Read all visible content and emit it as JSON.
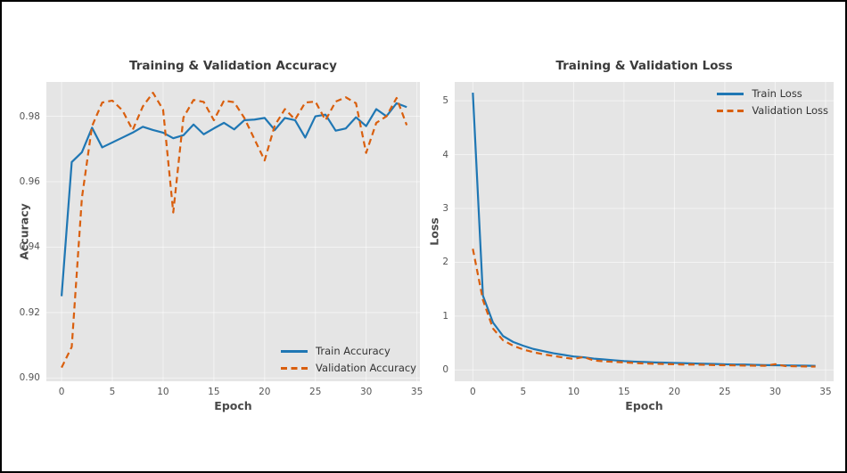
{
  "figure": {
    "background": "#ffffff",
    "frame_color": "#000000",
    "plot_background": "#e5e5e5",
    "grid_color": "#ffffff",
    "tick_color": "#555555",
    "title_color": "#3b3b3b",
    "train_color": "#1f77b4",
    "validation_color": "#d95f0e"
  },
  "chart_data": [
    {
      "type": "line",
      "title": "Training & Validation Accuracy",
      "xlabel": "Epoch",
      "ylabel": "Accuracy",
      "x": [
        0,
        1,
        2,
        3,
        4,
        5,
        6,
        7,
        8,
        9,
        10,
        11,
        12,
        13,
        14,
        15,
        16,
        17,
        18,
        19,
        20,
        21,
        22,
        23,
        24,
        25,
        26,
        27,
        28,
        29,
        30,
        31,
        32,
        33,
        34
      ],
      "series": [
        {
          "name": "Train Accuracy",
          "color": "#1f77b4",
          "line_style": "solid",
          "values": [
            0.925,
            0.966,
            0.969,
            0.9765,
            0.9705,
            0.972,
            0.9735,
            0.975,
            0.9768,
            0.9758,
            0.975,
            0.9733,
            0.9742,
            0.9775,
            0.9745,
            0.9763,
            0.978,
            0.976,
            0.9788,
            0.979,
            0.9795,
            0.9758,
            0.9795,
            0.9788,
            0.9735,
            0.98,
            0.9805,
            0.9756,
            0.9763,
            0.9797,
            0.977,
            0.9822,
            0.98,
            0.984,
            0.9828
          ]
        },
        {
          "name": "Validation Accuracy",
          "color": "#d95f0e",
          "line_style": "dashed",
          "values": [
            0.9032,
            0.9095,
            0.955,
            0.977,
            0.9842,
            0.9848,
            0.9818,
            0.9758,
            0.983,
            0.9872,
            0.982,
            0.9506,
            0.9796,
            0.985,
            0.9844,
            0.9788,
            0.9848,
            0.9843,
            0.9795,
            0.973,
            0.9665,
            0.9772,
            0.9822,
            0.979,
            0.9842,
            0.9845,
            0.9788,
            0.9845,
            0.9858,
            0.984,
            0.9688,
            0.978,
            0.98,
            0.9856,
            0.9773
          ]
        }
      ],
      "xlim": [
        -1.5,
        35.3
      ],
      "ylim": [
        0.899,
        0.9905
      ],
      "xticks": [
        0,
        5,
        10,
        15,
        20,
        25,
        30,
        35
      ],
      "xtick_labels": [
        "0",
        "5",
        "10",
        "15",
        "20",
        "25",
        "30",
        "35"
      ],
      "yticks": [
        0.9,
        0.92,
        0.94,
        0.96,
        0.98
      ],
      "ytick_labels": [
        "0.90",
        "0.92",
        "0.94",
        "0.96",
        "0.98"
      ],
      "grid": true,
      "legend_position": "lower-right"
    },
    {
      "type": "line",
      "title": "Training & Validation Loss",
      "xlabel": "Epoch",
      "ylabel": "Loss",
      "x": [
        0,
        1,
        2,
        3,
        4,
        5,
        6,
        7,
        8,
        9,
        10,
        11,
        12,
        13,
        14,
        15,
        16,
        17,
        18,
        19,
        20,
        21,
        22,
        23,
        24,
        25,
        26,
        27,
        28,
        29,
        30,
        31,
        32,
        33,
        34
      ],
      "series": [
        {
          "name": "Train Loss",
          "color": "#1f77b4",
          "line_style": "solid",
          "values": [
            5.15,
            1.38,
            0.88,
            0.63,
            0.52,
            0.45,
            0.39,
            0.35,
            0.31,
            0.28,
            0.25,
            0.235,
            0.21,
            0.195,
            0.18,
            0.165,
            0.155,
            0.148,
            0.14,
            0.135,
            0.13,
            0.125,
            0.12,
            0.115,
            0.11,
            0.105,
            0.1,
            0.1,
            0.095,
            0.09,
            0.088,
            0.085,
            0.082,
            0.08,
            0.075
          ]
        },
        {
          "name": "Validation Loss",
          "color": "#d95f0e",
          "line_style": "dashed",
          "values": [
            2.25,
            1.3,
            0.77,
            0.55,
            0.45,
            0.38,
            0.33,
            0.29,
            0.26,
            0.23,
            0.205,
            0.24,
            0.175,
            0.16,
            0.15,
            0.14,
            0.13,
            0.12,
            0.115,
            0.11,
            0.105,
            0.1,
            0.1,
            0.095,
            0.09,
            0.088,
            0.085,
            0.082,
            0.08,
            0.078,
            0.108,
            0.072,
            0.068,
            0.065,
            0.062
          ]
        }
      ],
      "xlim": [
        -1.8,
        35.8
      ],
      "ylim": [
        -0.21,
        5.35
      ],
      "xticks": [
        0,
        5,
        10,
        15,
        20,
        25,
        30,
        35
      ],
      "xtick_labels": [
        "0",
        "5",
        "10",
        "15",
        "20",
        "25",
        "30",
        "35"
      ],
      "yticks": [
        0,
        1,
        2,
        3,
        4,
        5
      ],
      "ytick_labels": [
        "0",
        "1",
        "2",
        "3",
        "4",
        "5"
      ],
      "grid": true,
      "legend_position": "upper-right"
    }
  ]
}
